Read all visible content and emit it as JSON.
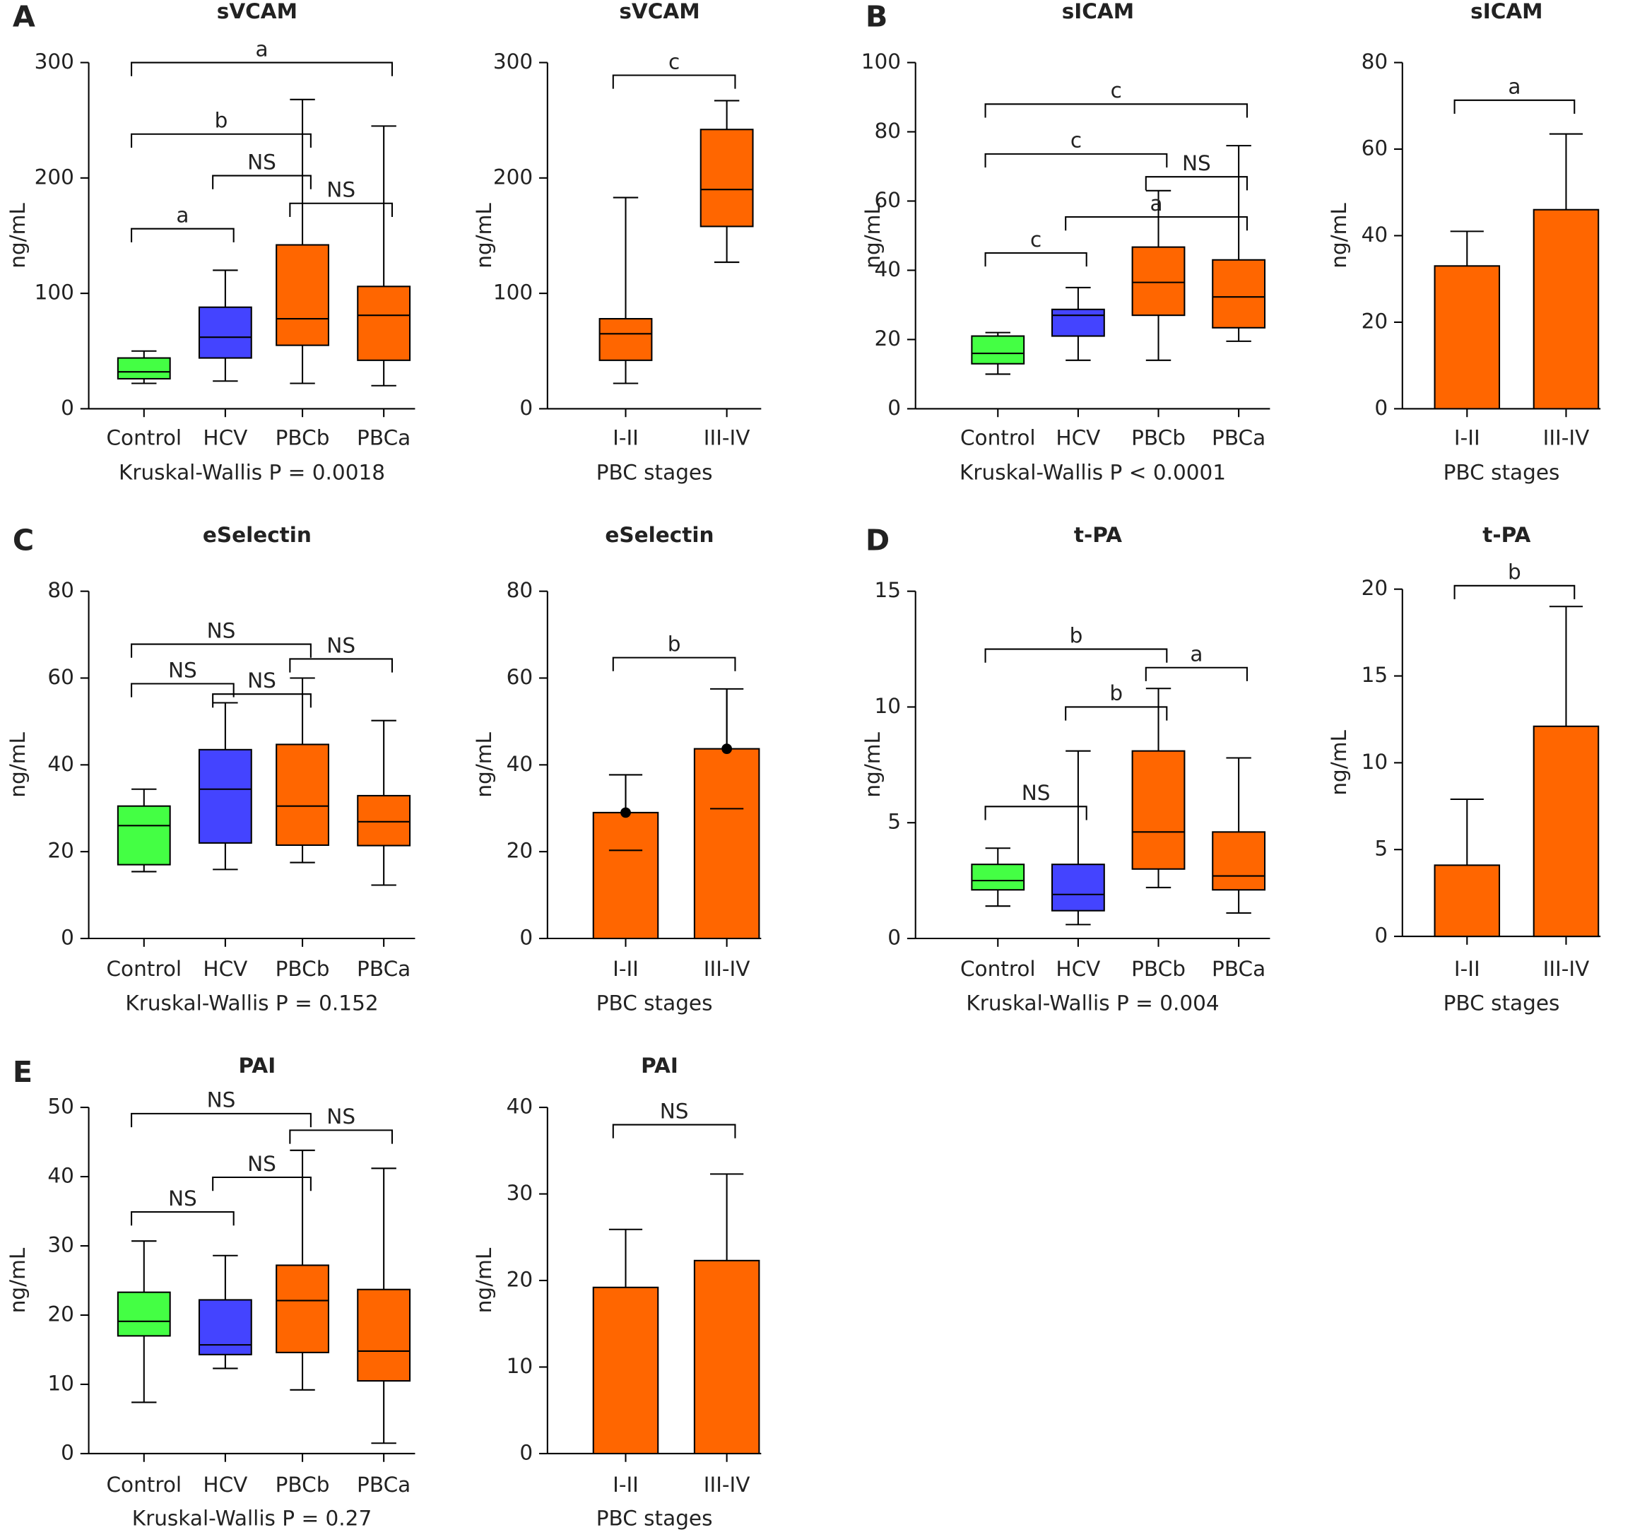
{
  "chart_data": [
    {
      "type": "box",
      "panel_label": "A",
      "title": "sVCAM",
      "ylabel": "ng/mL",
      "xlabel": "Kruskal-Wallis P = 0.0018",
      "categories": [
        "Control",
        "HCV",
        "PBCb",
        "PBCa"
      ],
      "colors": [
        "#44ff44",
        "#4444ff",
        "#ff6600",
        "#ff6600"
      ],
      "min": [
        22,
        24,
        22,
        20
      ],
      "q1": [
        26,
        44,
        55,
        42
      ],
      "median": [
        32,
        62,
        78,
        81
      ],
      "q3": [
        44,
        88,
        142,
        106
      ],
      "max": [
        50,
        120,
        268,
        245
      ],
      "ylim": [
        0,
        300
      ],
      "yticks": [
        0,
        100,
        200,
        300
      ],
      "brackets": [
        {
          "label": "a",
          "from": 0,
          "to": 3,
          "y": 300
        },
        {
          "label": "b",
          "from": 0,
          "to": 2,
          "y": 238
        },
        {
          "label": "NS",
          "from": 1,
          "to": 2,
          "y": 202
        },
        {
          "label": "NS",
          "from": 2,
          "to": 3,
          "y": 178
        },
        {
          "label": "a",
          "from": 0,
          "to": 1,
          "y": 156
        }
      ]
    },
    {
      "type": "box",
      "title": "sVCAM",
      "ylabel": "ng/mL",
      "xlabel": "PBC stages",
      "categories": [
        "I-II",
        "III-IV"
      ],
      "colors": [
        "#ff6600",
        "#ff6600"
      ],
      "min": [
        22,
        127
      ],
      "q1": [
        42,
        158
      ],
      "median": [
        65,
        190
      ],
      "q3": [
        78,
        242
      ],
      "max": [
        183,
        267
      ],
      "ylim": [
        0,
        300
      ],
      "yticks": [
        0,
        100,
        200,
        300
      ],
      "brackets": [
        {
          "label": "c",
          "from": 0,
          "to": 1,
          "y": 289
        }
      ]
    },
    {
      "type": "box",
      "panel_label": "B",
      "title": "sICAM",
      "ylabel": "ng/mL",
      "xlabel": "Kruskal-Wallis P < 0.0001",
      "categories": [
        "Control",
        "HCV",
        "PBCb",
        "PBCa"
      ],
      "colors": [
        "#44ff44",
        "#4444ff",
        "#ff6600",
        "#ff6600"
      ],
      "min": [
        10,
        14,
        14,
        19.5
      ],
      "q1": [
        13,
        21,
        27,
        23.4
      ],
      "median": [
        16,
        27,
        36.5,
        32.3
      ],
      "q3": [
        21,
        28.7,
        46.7,
        43
      ],
      "max": [
        22,
        35,
        63,
        76
      ],
      "ylim": [
        0,
        100
      ],
      "yticks": [
        0,
        20,
        40,
        60,
        80,
        100
      ],
      "brackets": [
        {
          "label": "c",
          "from": 0,
          "to": 3,
          "y": 88
        },
        {
          "label": "c",
          "from": 0,
          "to": 2,
          "y": 73.6
        },
        {
          "label": "NS",
          "from": 2,
          "to": 3,
          "y": 67
        },
        {
          "label": "a",
          "from": 1,
          "to": 3,
          "y": 55.4
        },
        {
          "label": "c",
          "from": 0,
          "to": 1,
          "y": 45
        }
      ]
    },
    {
      "type": "bar",
      "title": "sICAM",
      "ylabel": "ng/mL",
      "xlabel": "PBC stages",
      "categories": [
        "I-II",
        "III-IV"
      ],
      "color": "#ff6600",
      "values": [
        33,
        46
      ],
      "errors": [
        8,
        17.5
      ],
      "ylim": [
        0,
        80
      ],
      "yticks": [
        0,
        20,
        40,
        60,
        80
      ],
      "brackets": [
        {
          "label": "a",
          "from": 0,
          "to": 1,
          "y": 71.3
        }
      ]
    },
    {
      "type": "box",
      "panel_label": "C",
      "title": "eSelectin",
      "ylabel": "ng/mL",
      "xlabel": "Kruskal-Wallis P = 0.152",
      "categories": [
        "Control",
        "HCV",
        "PBCb",
        "PBCa"
      ],
      "colors": [
        "#44ff44",
        "#4444ff",
        "#ff6600",
        "#ff6600"
      ],
      "min": [
        15.4,
        15.9,
        17.5,
        12.3
      ],
      "q1": [
        17,
        22,
        21.5,
        21.4
      ],
      "median": [
        26,
        34.4,
        30.5,
        26.9
      ],
      "q3": [
        30.5,
        43.5,
        44.7,
        32.9
      ],
      "max": [
        34.4,
        54.3,
        60,
        50.2
      ],
      "ylim": [
        0,
        80
      ],
      "yticks": [
        0,
        20,
        40,
        60,
        80
      ],
      "brackets": [
        {
          "label": "NS",
          "from": 0,
          "to": 2,
          "y": 67.8
        },
        {
          "label": "NS",
          "from": 2,
          "to": 3,
          "y": 64.4
        },
        {
          "label": "NS",
          "from": 0,
          "to": 1,
          "y": 58.7
        },
        {
          "label": "NS",
          "from": 1,
          "to": 2,
          "y": 56.3
        }
      ]
    },
    {
      "type": "bar",
      "title": "eSelectin",
      "ylabel": "ng/mL",
      "xlabel": "PBC stages",
      "mean_marker": true,
      "categories": [
        "I-II",
        "III-IV"
      ],
      "color": "#ff6600",
      "values": [
        29,
        43.7
      ],
      "errors": [
        8.7,
        13.8
      ],
      "ylim": [
        0,
        80
      ],
      "yticks": [
        0,
        20,
        40,
        60,
        80
      ],
      "brackets": [
        {
          "label": "b",
          "from": 0,
          "to": 1,
          "y": 64.7
        }
      ]
    },
    {
      "type": "box",
      "panel_label": "D",
      "title": "t-PA",
      "ylabel": "ng/mL",
      "xlabel": "Kruskal-Wallis P = 0.004",
      "categories": [
        "Control",
        "HCV",
        "PBCb",
        "PBCa"
      ],
      "colors": [
        "#44ff44",
        "#4444ff",
        "#ff6600",
        "#ff6600"
      ],
      "min": [
        1.4,
        0.6,
        2.2,
        1.1
      ],
      "q1": [
        2.1,
        1.2,
        3,
        2.1
      ],
      "median": [
        2.5,
        1.9,
        4.6,
        2.7
      ],
      "q3": [
        3.2,
        3.2,
        8.1,
        4.6
      ],
      "max": [
        3.9,
        8.1,
        10.8,
        7.8
      ],
      "ylim": [
        0,
        15
      ],
      "yticks": [
        0,
        5,
        10,
        15
      ],
      "brackets": [
        {
          "label": "b",
          "from": 0,
          "to": 2,
          "y": 12.5
        },
        {
          "label": "a",
          "from": 2,
          "to": 3,
          "y": 11.7
        },
        {
          "label": "b",
          "from": 1,
          "to": 2,
          "y": 10
        },
        {
          "label": "NS",
          "from": 0,
          "to": 1,
          "y": 5.7
        }
      ]
    },
    {
      "type": "bar",
      "title": "t-PA",
      "ylabel": "ng/mL",
      "xlabel": "PBC stages",
      "categories": [
        "I-II",
        "III-IV"
      ],
      "color": "#ff6600",
      "values": [
        4.1,
        12.1
      ],
      "errors": [
        3.8,
        6.9
      ],
      "ylim": [
        0,
        20
      ],
      "yticks": [
        0,
        5,
        10,
        15,
        20
      ],
      "brackets": [
        {
          "label": "b",
          "from": 0,
          "to": 1,
          "y": 20.2
        }
      ]
    },
    {
      "type": "box",
      "panel_label": "E",
      "title": "PAI",
      "ylabel": "ng/mL",
      "xlabel": "Kruskal-Wallis P = 0.27",
      "categories": [
        "Control",
        "HCV",
        "PBCb",
        "PBCa"
      ],
      "colors": [
        "#44ff44",
        "#4444ff",
        "#ff6600",
        "#ff6600"
      ],
      "min": [
        7.4,
        12.3,
        9.2,
        1.5
      ],
      "q1": [
        17,
        14.3,
        14.6,
        10.5
      ],
      "median": [
        19.1,
        15.7,
        22.1,
        14.8
      ],
      "q3": [
        23.3,
        22.2,
        27.2,
        23.7
      ],
      "max": [
        30.7,
        28.6,
        43.8,
        41.2
      ],
      "ylim": [
        0,
        50
      ],
      "yticks": [
        0,
        10,
        20,
        30,
        40,
        50
      ],
      "brackets": [
        {
          "label": "NS",
          "from": 0,
          "to": 2,
          "y": 49.1
        },
        {
          "label": "NS",
          "from": 2,
          "to": 3,
          "y": 46.7
        },
        {
          "label": "NS",
          "from": 1,
          "to": 2,
          "y": 39.9
        },
        {
          "label": "NS",
          "from": 0,
          "to": 1,
          "y": 34.9
        }
      ]
    },
    {
      "type": "bar",
      "title": "PAI",
      "ylabel": "ng/mL",
      "xlabel": "PBC stages",
      "categories": [
        "I-II",
        "III-IV"
      ],
      "color": "#ff6600",
      "values": [
        19.2,
        22.3
      ],
      "errors": [
        6.7,
        10
      ],
      "ylim": [
        0,
        40
      ],
      "yticks": [
        0,
        10,
        20,
        30,
        40
      ],
      "brackets": [
        {
          "label": "NS",
          "from": 0,
          "to": 1,
          "y": 38
        }
      ]
    }
  ]
}
